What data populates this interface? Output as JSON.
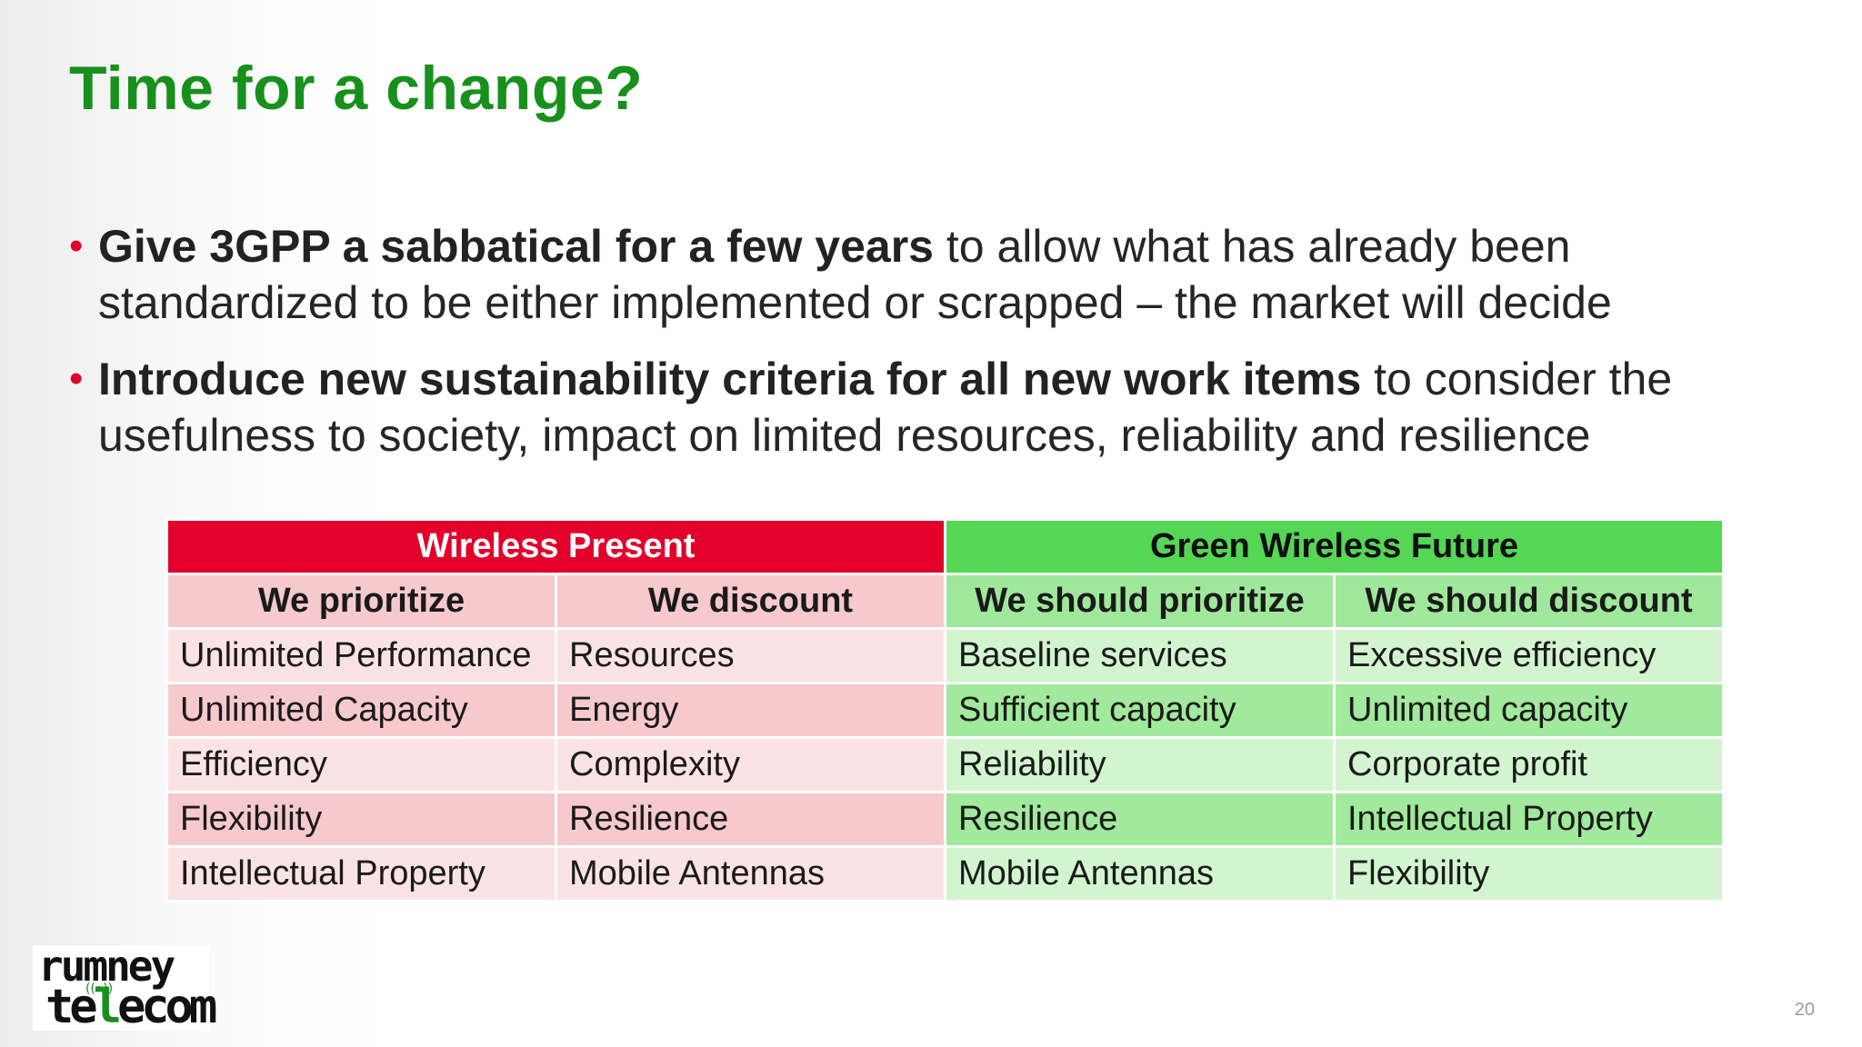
{
  "slide": {
    "title": "Time for a change?",
    "page_number": "20"
  },
  "bullets": [
    {
      "bold": "Give 3GPP a sabbatical for a few years",
      "rest": " to allow what has already been standardized to be either implemented or scrapped – the market will decide"
    },
    {
      "bold": "Introduce new sustainability criteria for all new work items",
      "rest": " to consider the usefulness to society, impact on limited resources, reliability and resilience"
    }
  ],
  "table": {
    "present_header": "Wireless Present",
    "future_header": "Green Wireless Future",
    "subheaders": [
      "We prioritize",
      "We discount",
      "We should prioritize",
      "We should discount"
    ],
    "rows": [
      [
        "Unlimited Performance",
        "Resources",
        "Baseline services",
        "Excessive efficiency"
      ],
      [
        "Unlimited Capacity",
        "Energy",
        "Sufficient capacity",
        "Unlimited capacity"
      ],
      [
        "Efficiency",
        "Complexity",
        "Reliability",
        "Corporate profit"
      ],
      [
        "Flexibility",
        "Resilience",
        "Resilience",
        "Intellectual Property"
      ],
      [
        "Intellectual Property",
        "Mobile Antennas",
        "Mobile Antennas",
        "Flexibility"
      ]
    ]
  },
  "logo": {
    "line1": "rumney",
    "line2_a": "te",
    "line2_b": "l",
    "line2_c": "ecom"
  },
  "colors": {
    "title": "#17901c",
    "bullet_marker": "#e0002b",
    "present_band": "#e3002b",
    "future_band": "#55d655"
  }
}
